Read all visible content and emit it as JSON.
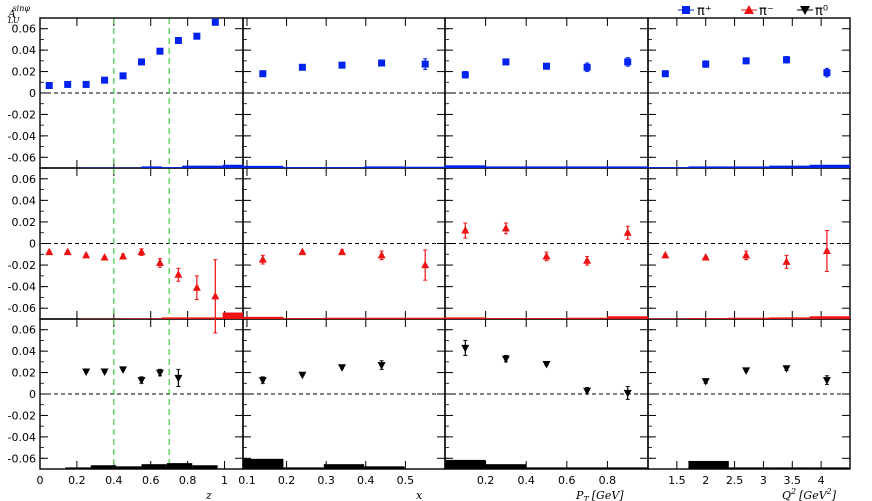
{
  "chart_data": {
    "type": "scatter",
    "ylabel_main": "A",
    "ylabel_sup": "sinφ",
    "ylabel_sub": "LU",
    "ylim": [
      -0.07,
      0.07
    ],
    "yticks": [
      "0.06",
      "0.04",
      "0.02",
      "0",
      "-0.02",
      "-0.04",
      "-0.06"
    ],
    "yticks_values": [
      0.06,
      0.04,
      0.02,
      0,
      -0.02,
      -0.04,
      -0.06
    ],
    "legend": [
      {
        "name": "π⁺",
        "color": "#0022ee",
        "marker": "square"
      },
      {
        "name": "π⁻",
        "color": "#ee1111",
        "marker": "triangle-up"
      },
      {
        "name": "π⁰",
        "color": "#000000",
        "marker": "triangle-down"
      }
    ],
    "dashed_zero_line": true,
    "columns": [
      {
        "xlabel": "z",
        "xlim": [
          0,
          1.1
        ],
        "xticks": [
          "0",
          "0.2",
          "0.4",
          "0.6",
          "0.8",
          "1"
        ],
        "xticks_values": [
          0,
          0.2,
          0.4,
          0.6,
          0.8,
          1.0
        ],
        "vlines": [
          0.4,
          0.7
        ]
      },
      {
        "xlabel": "x",
        "xlim": [
          0.09,
          0.6
        ],
        "xticks": [
          "0.1",
          "0.2",
          "0.3",
          "0.4",
          "0.5"
        ],
        "xticks_values": [
          0.1,
          0.2,
          0.3,
          0.4,
          0.5
        ],
        "vlines": []
      },
      {
        "xlabel": "P",
        "xlabel_sub": "T",
        "xlabel_unit": "[GeV]",
        "xlim": [
          0,
          1.0
        ],
        "xticks": [
          "0.2",
          "0.4",
          "0.6",
          "0.8"
        ],
        "xticks_values": [
          0.2,
          0.4,
          0.6,
          0.8
        ],
        "vlines": []
      },
      {
        "xlabel": "Q",
        "xlabel_sup": "2",
        "xlabel_unit": "[GeV",
        "xlabel_unit_sup": "2",
        "xlabel_unit_end": "]",
        "xlim": [
          1.0,
          4.5
        ],
        "xticks": [
          "1.5",
          "2",
          "2.5",
          "3",
          "3.5",
          "4"
        ],
        "xticks_values": [
          1.5,
          2.0,
          2.5,
          3.0,
          3.5,
          4.0
        ],
        "vlines": []
      }
    ],
    "rows": [
      {
        "series": "π⁺",
        "color": "#0022ee",
        "marker": "square",
        "panels": [
          {
            "points": [
              {
                "x": 0.05,
                "y": 0.007,
                "err": 0.001
              },
              {
                "x": 0.15,
                "y": 0.008,
                "err": 0.001
              },
              {
                "x": 0.25,
                "y": 0.008,
                "err": 0.001
              },
              {
                "x": 0.35,
                "y": 0.012,
                "err": 0.001
              },
              {
                "x": 0.45,
                "y": 0.016,
                "err": 0.001
              },
              {
                "x": 0.55,
                "y": 0.029,
                "err": 0.001
              },
              {
                "x": 0.65,
                "y": 0.039,
                "err": 0.002
              },
              {
                "x": 0.75,
                "y": 0.049,
                "err": 0.002
              },
              {
                "x": 0.85,
                "y": 0.053,
                "err": 0.002
              },
              {
                "x": 0.95,
                "y": 0.066,
                "err": 0.002
              }
            ],
            "sys": [
              0,
              0,
              0.0003,
              0.0003,
              0.0003,
              0.0015,
              0.0008,
              0.0022,
              0.0022,
              0.003
            ]
          },
          {
            "points": [
              {
                "x": 0.14,
                "y": 0.018,
                "err": 0.001
              },
              {
                "x": 0.24,
                "y": 0.024,
                "err": 0.001
              },
              {
                "x": 0.34,
                "y": 0.026,
                "err": 0.002
              },
              {
                "x": 0.44,
                "y": 0.028,
                "err": 0.002
              },
              {
                "x": 0.55,
                "y": 0.027,
                "err": 0.005
              }
            ],
            "sys": [
              0.002,
              0.0008,
              0.0008,
              0.0015,
              0.0012
            ]
          },
          {
            "points": [
              {
                "x": 0.1,
                "y": 0.017,
                "err": 0.003
              },
              {
                "x": 0.3,
                "y": 0.029,
                "err": 0.002
              },
              {
                "x": 0.5,
                "y": 0.025,
                "err": 0.002
              },
              {
                "x": 0.7,
                "y": 0.024,
                "err": 0.004
              },
              {
                "x": 0.9,
                "y": 0.029,
                "err": 0.004
              }
            ],
            "sys": [
              0.0025,
              0.0015,
              0.0015,
              0.0015,
              0.0015
            ]
          },
          {
            "points": [
              {
                "x": 1.3,
                "y": 0.018,
                "err": 0.001
              },
              {
                "x": 2.0,
                "y": 0.027,
                "err": 0.003
              },
              {
                "x": 2.7,
                "y": 0.03,
                "err": 0.002
              },
              {
                "x": 3.4,
                "y": 0.031,
                "err": 0.003
              },
              {
                "x": 4.1,
                "y": 0.019,
                "err": 0.004
              }
            ],
            "sys": [
              0.0008,
              0.0015,
              0.0015,
              0.0022,
              0.003
            ]
          }
        ]
      },
      {
        "series": "π⁻",
        "color": "#ee1111",
        "marker": "triangle-up",
        "panels": [
          {
            "points": [
              {
                "x": 0.05,
                "y": -0.008,
                "err": 0.001
              },
              {
                "x": 0.15,
                "y": -0.008,
                "err": 0.001
              },
              {
                "x": 0.25,
                "y": -0.011,
                "err": 0.001
              },
              {
                "x": 0.35,
                "y": -0.013,
                "err": 0.001
              },
              {
                "x": 0.45,
                "y": -0.012,
                "err": 0.002
              },
              {
                "x": 0.55,
                "y": -0.008,
                "err": 0.003
              },
              {
                "x": 0.65,
                "y": -0.018,
                "err": 0.004
              },
              {
                "x": 0.75,
                "y": -0.029,
                "err": 0.006
              },
              {
                "x": 0.85,
                "y": -0.041,
                "err": 0.011
              },
              {
                "x": 0.95,
                "y": -0.049,
                "err": 0.034
              }
            ],
            "sys": [
              0,
              0,
              0.0003,
              0.0003,
              0.0005,
              0.0005,
              0.0015,
              0.0015,
              0.0015,
              0.006
            ]
          },
          {
            "points": [
              {
                "x": 0.14,
                "y": -0.015,
                "err": 0.004
              },
              {
                "x": 0.24,
                "y": -0.008,
                "err": 0.001
              },
              {
                "x": 0.34,
                "y": -0.008,
                "err": 0.002
              },
              {
                "x": 0.44,
                "y": -0.011,
                "err": 0.004
              },
              {
                "x": 0.55,
                "y": -0.02,
                "err": 0.014
              }
            ],
            "sys": [
              0.002,
              0.0008,
              0.0012,
              0.0012,
              0.0012
            ]
          },
          {
            "points": [
              {
                "x": 0.1,
                "y": 0.012,
                "err": 0.007
              },
              {
                "x": 0.3,
                "y": 0.014,
                "err": 0.005
              },
              {
                "x": 0.5,
                "y": -0.012,
                "err": 0.004
              },
              {
                "x": 0.7,
                "y": -0.016,
                "err": 0.004
              },
              {
                "x": 0.9,
                "y": 0.01,
                "err": 0.006
              }
            ],
            "sys": [
              0.0015,
              0.0008,
              0.0008,
              0.0012,
              0.0025
            ]
          },
          {
            "points": [
              {
                "x": 1.3,
                "y": -0.011,
                "err": 0.001
              },
              {
                "x": 2.0,
                "y": -0.013,
                "err": 0.001
              },
              {
                "x": 2.7,
                "y": -0.011,
                "err": 0.004
              },
              {
                "x": 3.4,
                "y": -0.017,
                "err": 0.006
              },
              {
                "x": 4.1,
                "y": -0.007,
                "err": 0.019
              }
            ],
            "sys": [
              0.0005,
              0.0008,
              0.0012,
              0.0015,
              0.0025
            ]
          }
        ]
      },
      {
        "series": "π⁰",
        "color": "#000000",
        "marker": "triangle-down",
        "panels": [
          {
            "points": [
              {
                "x": 0.25,
                "y": 0.021,
                "err": 0.001
              },
              {
                "x": 0.35,
                "y": 0.021,
                "err": 0.001
              },
              {
                "x": 0.45,
                "y": 0.023,
                "err": 0.001
              },
              {
                "x": 0.55,
                "y": 0.013,
                "err": 0.003
              },
              {
                "x": 0.65,
                "y": 0.02,
                "err": 0.003
              },
              {
                "x": 0.75,
                "y": 0.015,
                "err": 0.008
              }
            ],
            "sys": [
              0,
              0.0015,
              0.0035,
              0.0025,
              0.0045,
              0.0055,
              0.0035,
              0
            ]
          },
          {
            "points": [
              {
                "x": 0.14,
                "y": 0.013,
                "err": 0.003
              },
              {
                "x": 0.24,
                "y": 0.018,
                "err": 0.001
              },
              {
                "x": 0.34,
                "y": 0.025,
                "err": 0.001
              },
              {
                "x": 0.44,
                "y": 0.027,
                "err": 0.004
              }
            ],
            "sys": [
              0.0095,
              0.0015,
              0.0045,
              0.0025,
              0
            ]
          },
          {
            "points": [
              {
                "x": 0.1,
                "y": 0.043,
                "err": 0.007
              },
              {
                "x": 0.3,
                "y": 0.033,
                "err": 0.003
              },
              {
                "x": 0.5,
                "y": 0.028,
                "err": 0.001
              },
              {
                "x": 0.7,
                "y": 0.003,
                "err": 0.003
              },
              {
                "x": 0.9,
                "y": 0.001,
                "err": 0.006
              }
            ],
            "sys": [
              0.0085,
              0.0045,
              0.0015,
              0.0015,
              0.0015
            ]
          },
          {
            "points": [
              {
                "x": 2.0,
                "y": 0.012,
                "err": 0.002
              },
              {
                "x": 2.7,
                "y": 0.022,
                "err": 0.001
              },
              {
                "x": 3.4,
                "y": 0.024,
                "err": 0.002
              },
              {
                "x": 4.1,
                "y": 0.013,
                "err": 0.004
              }
            ],
            "sys": [
              0,
              0.0075,
              0.0015,
              0.0015,
              0.0015
            ]
          }
        ]
      }
    ]
  }
}
